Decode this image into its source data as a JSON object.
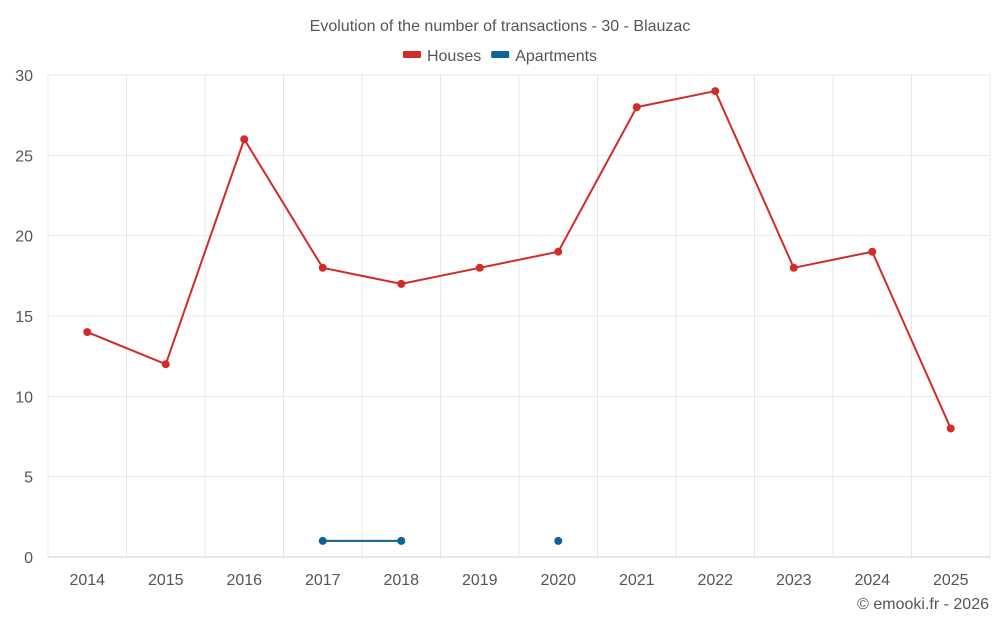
{
  "chart_data": {
    "type": "line",
    "title": "Evolution of the number of transactions - 30 - Blauzac",
    "x": [
      "2014",
      "2015",
      "2016",
      "2017",
      "2018",
      "2019",
      "2020",
      "2021",
      "2022",
      "2023",
      "2024",
      "2025"
    ],
    "series": [
      {
        "name": "Houses",
        "color": "#d32a2a",
        "values": [
          14,
          12,
          26,
          18,
          17,
          18,
          19,
          28,
          29,
          18,
          19,
          8
        ]
      },
      {
        "name": "Apartments",
        "color": "#0b6396",
        "values": [
          null,
          null,
          null,
          1,
          1,
          null,
          1,
          null,
          null,
          null,
          null,
          null
        ]
      }
    ],
    "ylim": [
      0,
      30
    ],
    "yticks": [
      0,
      5,
      10,
      15,
      20,
      25,
      30
    ],
    "grid": true,
    "legend_position": "top-center",
    "credit": "© emooki.fr - 2026"
  }
}
